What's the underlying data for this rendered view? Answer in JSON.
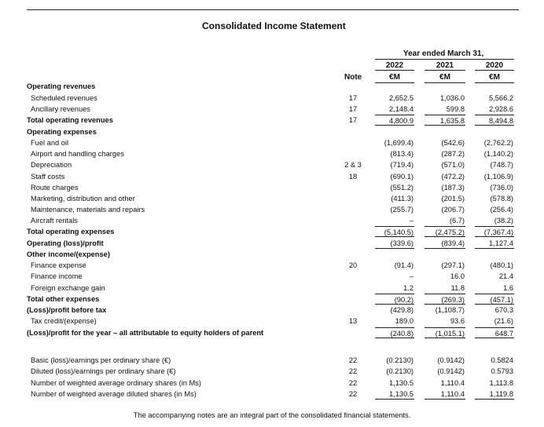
{
  "title": "Consolidated Income Statement",
  "header": {
    "period": "Year ended March 31,",
    "note": "Note",
    "years": [
      "2022",
      "2021",
      "2020"
    ],
    "currency": [
      "€M",
      "€M",
      "€M"
    ]
  },
  "rows": [
    {
      "label": "Operating revenues",
      "bold": true
    },
    {
      "label": "Scheduled revenues",
      "note": "17",
      "values": [
        "2,652.5",
        "1,036.0",
        "5,566.2"
      ]
    },
    {
      "label": "Ancillary revenues",
      "note": "17",
      "values": [
        "2,148.4",
        "599.8",
        "2,928.6"
      ]
    },
    {
      "label": "Total operating revenues",
      "bold": true,
      "note": "17",
      "values": [
        "4,800.9",
        "1,635.8",
        "8,494.8"
      ],
      "rule_top": true,
      "rule_bottom": true
    },
    {
      "label": "Operating expenses",
      "bold": true
    },
    {
      "label": "Fuel and oil",
      "values": [
        "(1,699.4)",
        "(542.6)",
        "(2,762.2)"
      ]
    },
    {
      "label": "Airport and handling charges",
      "values": [
        "(813.4)",
        "(287.2)",
        "(1,140.2)"
      ]
    },
    {
      "label": "Depreciation",
      "note": "2 & 3",
      "values": [
        "(719.4)",
        "(571.0)",
        "(748.7)"
      ]
    },
    {
      "label": "Staff costs",
      "note": "18",
      "values": [
        "(690.1)",
        "(472.2)",
        "(1,106.9)"
      ]
    },
    {
      "label": "Route charges",
      "values": [
        "(551.2)",
        "(187.3)",
        "(736.0)"
      ]
    },
    {
      "label": "Marketing, distribution and other",
      "values": [
        "(411.3)",
        "(201.5)",
        "(578.8)"
      ]
    },
    {
      "label": "Maintenance, materials and repairs",
      "values": [
        "(255.7)",
        "(206.7)",
        "(256.4)"
      ]
    },
    {
      "label": "Aircraft rentals",
      "values": [
        "–",
        "(6.7)",
        "(38.2)"
      ]
    },
    {
      "label": "Total operating expenses",
      "bold": true,
      "values": [
        "(5,140.5)",
        "(2,475.2)",
        "(7,367.4)"
      ],
      "rule_top": true,
      "rule_bottom": true
    },
    {
      "label": "Operating (loss)/profit",
      "bold": true,
      "values": [
        "(339.6)",
        "(839.4)",
        "1,127.4"
      ],
      "rule_bottom": true
    },
    {
      "label": "Other income/(expense)",
      "bold": true
    },
    {
      "label": "Finance expense",
      "note": "20",
      "values": [
        "(91.4)",
        "(297.1)",
        "(480.1)"
      ]
    },
    {
      "label": "Finance income",
      "values": [
        "–",
        "16.0",
        "21.4"
      ]
    },
    {
      "label": "Foreign exchange gain",
      "values": [
        "1.2",
        "11.8",
        "1.6"
      ]
    },
    {
      "label": "Total other expenses",
      "bold": true,
      "values": [
        "(90.2)",
        "(269.3)",
        "(457.1)"
      ],
      "rule_top": true,
      "rule_bottom": true
    },
    {
      "label": "(Loss)/profit before tax",
      "bold": true,
      "values": [
        "(429.8)",
        "(1,108.7)",
        "670.3"
      ]
    },
    {
      "label": "Tax credit/(expense)",
      "note": "13",
      "values": [
        "189.0",
        "93.6",
        "(21.6)"
      ]
    },
    {
      "label": "(Loss)/profit for the year – all attributable to equity holders of parent",
      "bold": true,
      "values": [
        "(240.8)",
        "(1,015.1)",
        "648.7"
      ],
      "rule_top": true,
      "rule_bottom": true
    },
    {
      "label": "Basic (loss)/earnings per ordinary share (€)",
      "note": "22",
      "values": [
        "(0.2130)",
        "(0.9142)",
        "0.5824"
      ]
    },
    {
      "label": "Diluted (loss)/earnings per ordinary share (€)",
      "note": "22",
      "values": [
        "(0.2130)",
        "(0.9142)",
        "0.5793"
      ]
    },
    {
      "label": "Number of weighted average ordinary shares (in Ms)",
      "note": "22",
      "values": [
        "1,130.5",
        "1,110.4",
        "1,113.8"
      ]
    },
    {
      "label": "Number of weighted average diluted shares (in Ms)",
      "note": "22",
      "values": [
        "1,130.5",
        "1,110.4",
        "1,119.8"
      ],
      "rule_bottom": true
    }
  ],
  "footer": "The accompanying notes are an integral part of the consolidated financial statements."
}
